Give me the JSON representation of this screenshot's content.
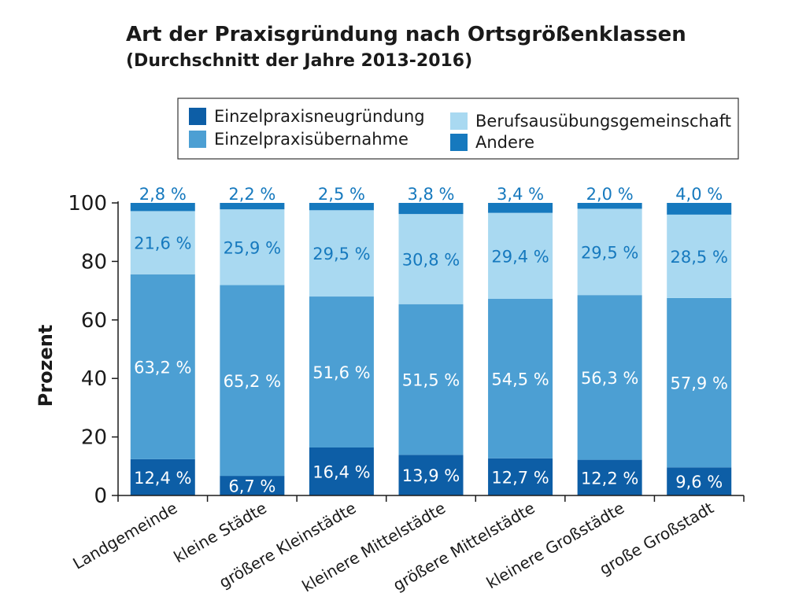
{
  "chart_data": {
    "type": "bar",
    "stacked": true,
    "title": "Art der Praxisgründung nach Ortsgrößenklassen",
    "subtitle": "(Durchschnitt der Jahre 2013-2016)",
    "ylabel": "Prozent",
    "ylim": [
      0,
      100
    ],
    "yticks": [
      "0",
      "20",
      "40",
      "60",
      "80",
      "100"
    ],
    "grid": false,
    "legend_position": "top",
    "categories": [
      "Landgemeinde",
      "kleine Städte",
      "größere Kleinstädte",
      "kleinere Mittelstädte",
      "größere Mittelstädte",
      "kleinere Großstädte",
      "große Großstadt"
    ],
    "series": [
      {
        "name": "Einzelpraxisneugründung",
        "color": "#0d5ea6",
        "values": [
          12.4,
          6.7,
          16.4,
          13.9,
          12.7,
          12.2,
          9.6
        ],
        "labels": [
          "12,4 %",
          "6,7 %",
          "16,4 %",
          "13,9 %",
          "12,7 %",
          "12,2 %",
          "9,6 %"
        ]
      },
      {
        "name": "Einzelpraxisübernahme",
        "color": "#4c9fd3",
        "values": [
          63.2,
          65.2,
          51.6,
          51.5,
          54.5,
          56.3,
          57.9
        ],
        "labels": [
          "63,2 %",
          "65,2 %",
          "51,6 %",
          "51,5 %",
          "54,5 %",
          "56,3 %",
          "57,9 %"
        ]
      },
      {
        "name": "Berufsausübungsgemeinschaft",
        "color": "#a9d9f1",
        "values": [
          21.6,
          25.9,
          29.5,
          30.8,
          29.4,
          29.5,
          28.5
        ],
        "labels": [
          "21,6 %",
          "25,9 %",
          "29,5 %",
          "30,8 %",
          "29,4 %",
          "29,5 %",
          "28,5 %"
        ]
      },
      {
        "name": "Andere",
        "color": "#1679be",
        "values": [
          2.8,
          2.2,
          2.5,
          3.8,
          3.4,
          2.0,
          4.0
        ],
        "labels": [
          "2,8 %",
          "2,2 %",
          "2,5 %",
          "3,8 %",
          "3,4 %",
          "2,0 %",
          "4,0 %"
        ]
      }
    ],
    "legend_order": [
      0,
      1,
      2,
      3
    ]
  }
}
